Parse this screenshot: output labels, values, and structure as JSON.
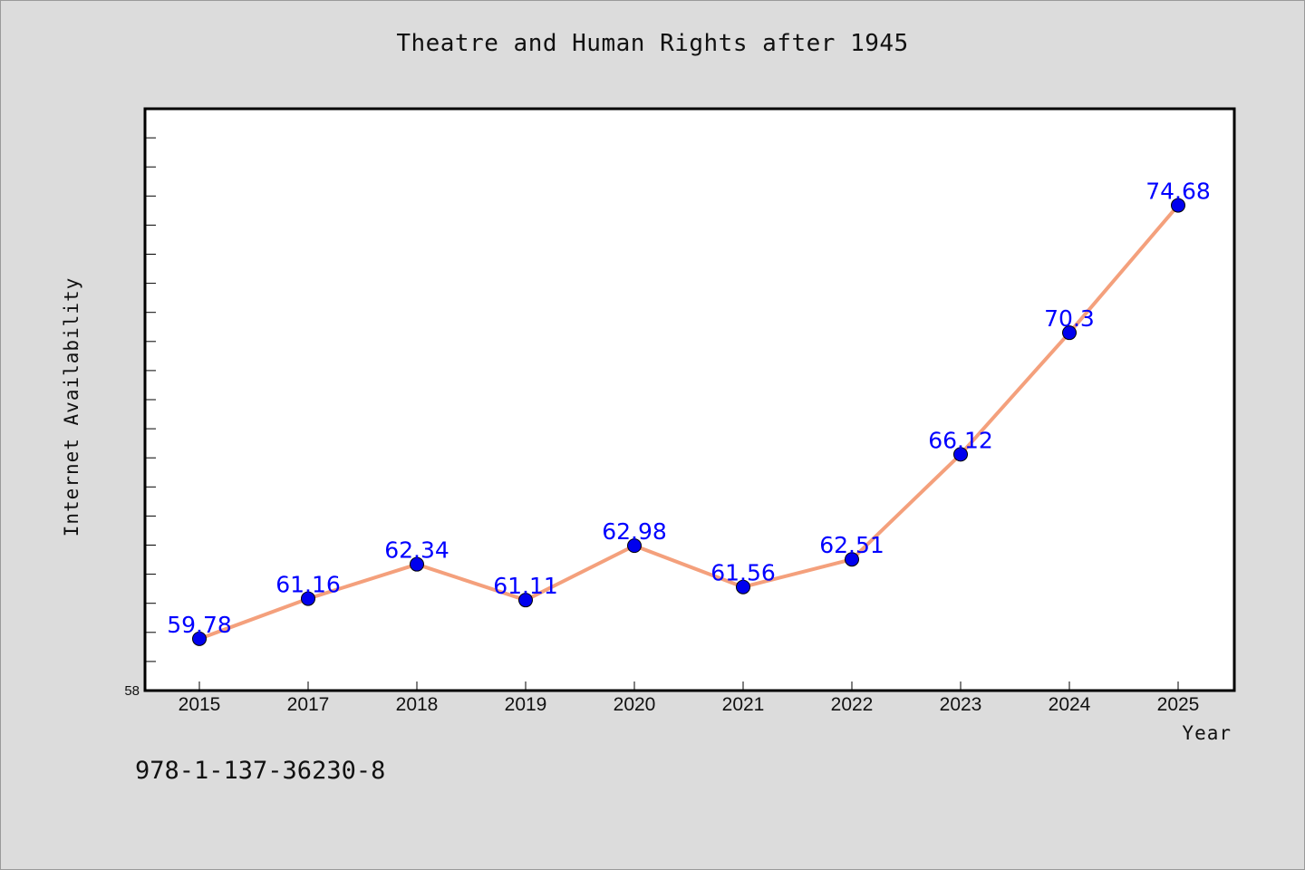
{
  "chart_data": {
    "type": "line",
    "title": "Theatre and Human Rights after 1945",
    "xlabel": "Year",
    "ylabel": "Internet Availability",
    "categories": [
      "2015",
      "2017",
      "2018",
      "2019",
      "2020",
      "2021",
      "2022",
      "2023",
      "2024",
      "2025"
    ],
    "series": [
      {
        "values": [
          59.78,
          61.16,
          62.34,
          61.11,
          62.98,
          61.56,
          62.51,
          66.12,
          70.3,
          74.68
        ],
        "data_labels": [
          "59.78",
          "61.16",
          "62.34",
          "61.11",
          "62.98",
          "61.56",
          "62.51",
          "66.12",
          "70.3",
          "74.68"
        ]
      }
    ],
    "y_tick_labels": [
      "58"
    ],
    "ylim": [
      58,
      78
    ],
    "y_minor_tick_step": 1,
    "grid": false,
    "legend": "none",
    "colors": {
      "line": "#f4a07c",
      "marker": "#0000ee",
      "data_label": "#0000ff",
      "plot_background": "#ffffff",
      "page_background": "#dcdcdc"
    }
  },
  "footer": {
    "isbn": "978-1-137-36230-8"
  }
}
